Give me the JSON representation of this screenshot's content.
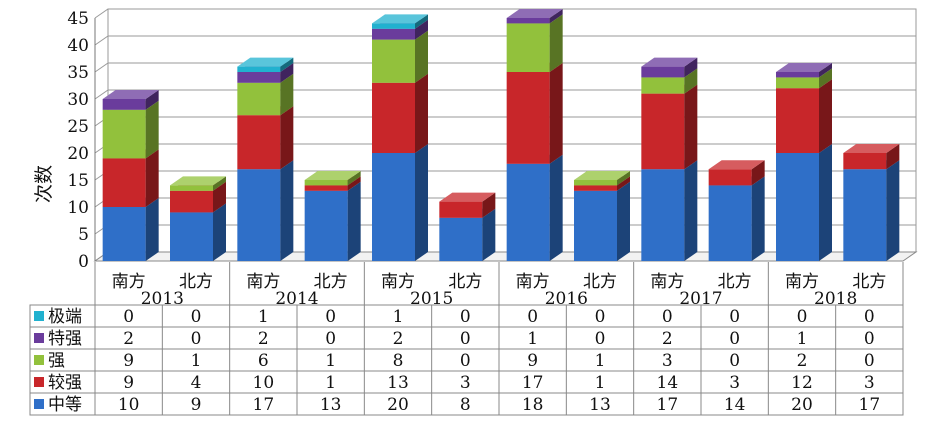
{
  "chart_data": {
    "type": "bar",
    "stacked": true,
    "three_d": true,
    "ylabel": "次数",
    "ylim": [
      0,
      45
    ],
    "yticks": [
      0,
      5,
      10,
      15,
      20,
      25,
      30,
      35,
      40,
      45
    ],
    "grid": true,
    "legend": "data-table-left",
    "subcategories": [
      "南方",
      "北方"
    ],
    "years": [
      "2013",
      "2014",
      "2015",
      "2016",
      "2017",
      "2018"
    ],
    "categories": [
      "南方 2013",
      "北方 2013",
      "南方 2014",
      "北方 2014",
      "南方 2015",
      "北方 2015",
      "南方 2016",
      "北方 2016",
      "南方 2017",
      "北方 2017",
      "南方 2018",
      "北方 2018"
    ],
    "series": [
      {
        "name": "中等",
        "color": "#2f6fc8",
        "values": [
          10,
          9,
          17,
          13,
          20,
          8,
          18,
          13,
          17,
          14,
          20,
          17
        ]
      },
      {
        "name": "较强",
        "color": "#c8262a",
        "values": [
          9,
          4,
          10,
          1,
          13,
          3,
          17,
          1,
          14,
          3,
          12,
          3
        ]
      },
      {
        "name": "强",
        "color": "#92c13c",
        "values": [
          9,
          1,
          6,
          1,
          8,
          0,
          9,
          1,
          3,
          0,
          2,
          0
        ]
      },
      {
        "name": "特强",
        "color": "#6a3c9c",
        "values": [
          2,
          0,
          2,
          0,
          2,
          0,
          1,
          0,
          2,
          0,
          1,
          0
        ]
      },
      {
        "name": "极端",
        "color": "#21b1cf",
        "values": [
          0,
          0,
          1,
          0,
          1,
          0,
          0,
          0,
          0,
          0,
          0,
          0
        ]
      }
    ]
  }
}
